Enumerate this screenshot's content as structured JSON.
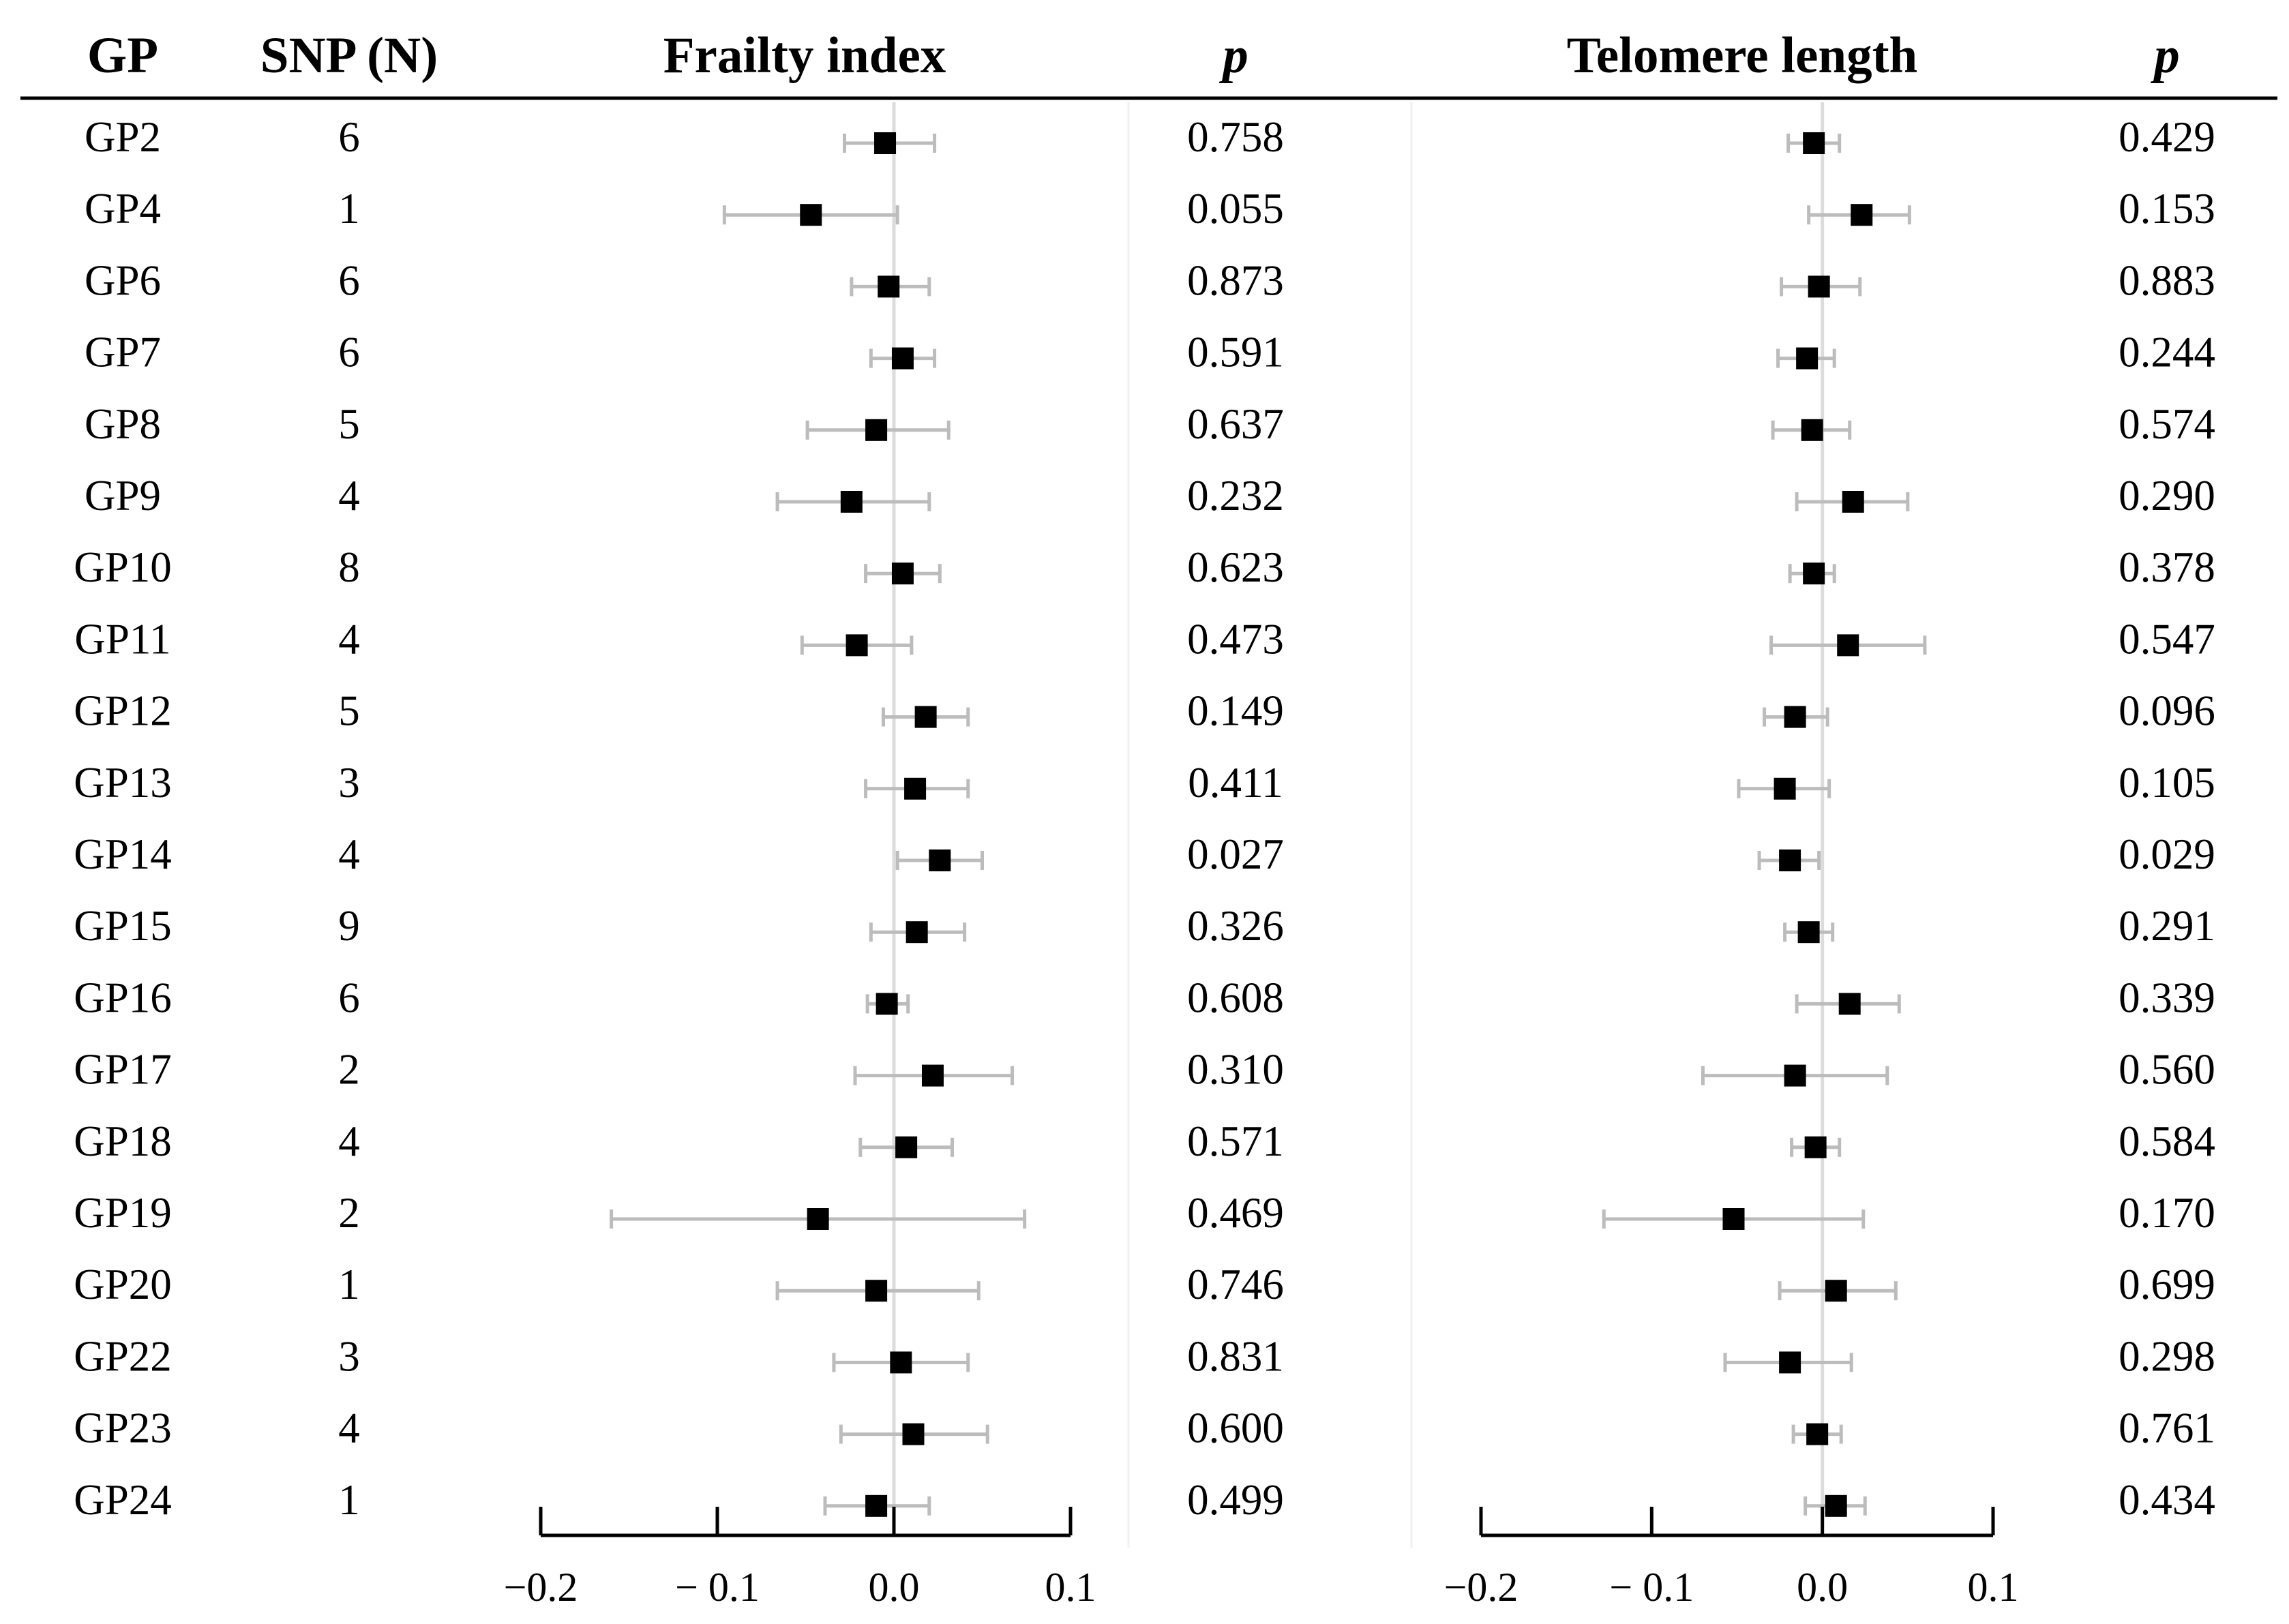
{
  "colors": {
    "marker": "#000000",
    "ci": "#bcbcbc",
    "zero_line": "#dcdcdc",
    "separator": "#f0f0f0",
    "axis": "#000000"
  },
  "chart_data": {
    "type": "forest",
    "headers": {
      "gp": "GP",
      "snp": "SNP (N)",
      "frailty": "Frailty index",
      "p1": "p",
      "telomere": "Telomere length",
      "p2": "p"
    },
    "rows": [
      {
        "gp": "GP2",
        "snp": "6",
        "frailty": {
          "est": -0.005,
          "lo": -0.028,
          "hi": 0.023
        },
        "frailty_p": "0.758",
        "telomere": {
          "est": -0.005,
          "lo": -0.02,
          "hi": 0.01
        },
        "telomere_p": "0.429"
      },
      {
        "gp": "GP4",
        "snp": "1",
        "frailty": {
          "est": -0.047,
          "lo": -0.096,
          "hi": 0.002
        },
        "frailty_p": "0.055",
        "telomere": {
          "est": 0.023,
          "lo": -0.008,
          "hi": 0.051
        },
        "telomere_p": "0.153"
      },
      {
        "gp": "GP6",
        "snp": "6",
        "frailty": {
          "est": -0.003,
          "lo": -0.024,
          "hi": 0.02
        },
        "frailty_p": "0.873",
        "telomere": {
          "est": -0.002,
          "lo": -0.024,
          "hi": 0.022
        },
        "telomere_p": "0.883"
      },
      {
        "gp": "GP7",
        "snp": "6",
        "frailty": {
          "est": 0.005,
          "lo": -0.013,
          "hi": 0.023
        },
        "frailty_p": "0.591",
        "telomere": {
          "est": -0.009,
          "lo": -0.026,
          "hi": 0.007
        },
        "telomere_p": "0.244"
      },
      {
        "gp": "GP8",
        "snp": "5",
        "frailty": {
          "est": -0.01,
          "lo": -0.049,
          "hi": 0.031
        },
        "frailty_p": "0.637",
        "telomere": {
          "est": -0.006,
          "lo": -0.029,
          "hi": 0.016
        },
        "telomere_p": "0.574"
      },
      {
        "gp": "GP9",
        "snp": "4",
        "frailty": {
          "est": -0.024,
          "lo": -0.066,
          "hi": 0.02
        },
        "frailty_p": "0.232",
        "telomere": {
          "est": 0.018,
          "lo": -0.015,
          "hi": 0.05
        },
        "telomere_p": "0.290"
      },
      {
        "gp": "GP10",
        "snp": "8",
        "frailty": {
          "est": 0.005,
          "lo": -0.016,
          "hi": 0.026
        },
        "frailty_p": "0.623",
        "telomere": {
          "est": -0.005,
          "lo": -0.019,
          "hi": 0.007
        },
        "telomere_p": "0.378"
      },
      {
        "gp": "GP11",
        "snp": "4",
        "frailty": {
          "est": -0.021,
          "lo": -0.052,
          "hi": 0.01
        },
        "frailty_p": "0.473",
        "telomere": {
          "est": 0.015,
          "lo": -0.03,
          "hi": 0.06
        },
        "telomere_p": "0.547"
      },
      {
        "gp": "GP12",
        "snp": "5",
        "frailty": {
          "est": 0.018,
          "lo": -0.006,
          "hi": 0.042
        },
        "frailty_p": "0.149",
        "telomere": {
          "est": -0.016,
          "lo": -0.034,
          "hi": 0.003
        },
        "telomere_p": "0.096"
      },
      {
        "gp": "GP13",
        "snp": "3",
        "frailty": {
          "est": 0.012,
          "lo": -0.016,
          "hi": 0.042
        },
        "frailty_p": "0.411",
        "telomere": {
          "est": -0.022,
          "lo": -0.049,
          "hi": 0.004
        },
        "telomere_p": "0.105"
      },
      {
        "gp": "GP14",
        "snp": "4",
        "frailty": {
          "est": 0.026,
          "lo": 0.002,
          "hi": 0.05
        },
        "frailty_p": "0.027",
        "telomere": {
          "est": -0.019,
          "lo": -0.037,
          "hi": -0.002
        },
        "telomere_p": "0.029"
      },
      {
        "gp": "GP15",
        "snp": "9",
        "frailty": {
          "est": 0.013,
          "lo": -0.013,
          "hi": 0.04
        },
        "frailty_p": "0.326",
        "telomere": {
          "est": -0.008,
          "lo": -0.022,
          "hi": 0.006
        },
        "telomere_p": "0.291"
      },
      {
        "gp": "GP16",
        "snp": "6",
        "frailty": {
          "est": -0.004,
          "lo": -0.015,
          "hi": 0.008
        },
        "frailty_p": "0.608",
        "telomere": {
          "est": 0.016,
          "lo": -0.015,
          "hi": 0.045
        },
        "telomere_p": "0.339"
      },
      {
        "gp": "GP17",
        "snp": "2",
        "frailty": {
          "est": 0.022,
          "lo": -0.022,
          "hi": 0.067
        },
        "frailty_p": "0.310",
        "telomere": {
          "est": -0.016,
          "lo": -0.07,
          "hi": 0.038
        },
        "telomere_p": "0.560"
      },
      {
        "gp": "GP18",
        "snp": "4",
        "frailty": {
          "est": 0.007,
          "lo": -0.019,
          "hi": 0.033
        },
        "frailty_p": "0.571",
        "telomere": {
          "est": -0.004,
          "lo": -0.018,
          "hi": 0.01
        },
        "telomere_p": "0.584"
      },
      {
        "gp": "GP19",
        "snp": "2",
        "frailty": {
          "est": -0.043,
          "lo": -0.16,
          "hi": 0.074
        },
        "frailty_p": "0.469",
        "telomere": {
          "est": -0.052,
          "lo": -0.128,
          "hi": 0.024
        },
        "telomere_p": "0.170"
      },
      {
        "gp": "GP20",
        "snp": "1",
        "frailty": {
          "est": -0.01,
          "lo": -0.066,
          "hi": 0.048
        },
        "frailty_p": "0.746",
        "telomere": {
          "est": 0.008,
          "lo": -0.025,
          "hi": 0.043
        },
        "telomere_p": "0.699"
      },
      {
        "gp": "GP22",
        "snp": "3",
        "frailty": {
          "est": 0.004,
          "lo": -0.034,
          "hi": 0.042
        },
        "frailty_p": "0.831",
        "telomere": {
          "est": -0.019,
          "lo": -0.057,
          "hi": 0.017
        },
        "telomere_p": "0.298"
      },
      {
        "gp": "GP23",
        "snp": "4",
        "frailty": {
          "est": 0.011,
          "lo": -0.03,
          "hi": 0.053
        },
        "frailty_p": "0.600",
        "telomere": {
          "est": -0.003,
          "lo": -0.017,
          "hi": 0.011
        },
        "telomere_p": "0.761"
      },
      {
        "gp": "GP24",
        "snp": "1",
        "frailty": {
          "est": -0.01,
          "lo": -0.039,
          "hi": 0.02
        },
        "frailty_p": "0.499",
        "telomere": {
          "est": 0.008,
          "lo": -0.01,
          "hi": 0.025
        },
        "telomere_p": "0.434"
      }
    ],
    "axes": {
      "frailty": {
        "range": [
          -0.2,
          0.1
        ],
        "ticks": [
          -0.2,
          -0.1,
          0.0,
          0.1
        ],
        "tick_labels": [
          "−0.2",
          "− 0.1",
          "0.0",
          "0.1"
        ]
      },
      "telomere": {
        "range": [
          -0.2,
          0.1
        ],
        "ticks": [
          -0.2,
          -0.1,
          0.0,
          0.1
        ],
        "tick_labels": [
          "−0.2",
          "− 0.1",
          "0.0",
          "0.1"
        ]
      }
    }
  }
}
